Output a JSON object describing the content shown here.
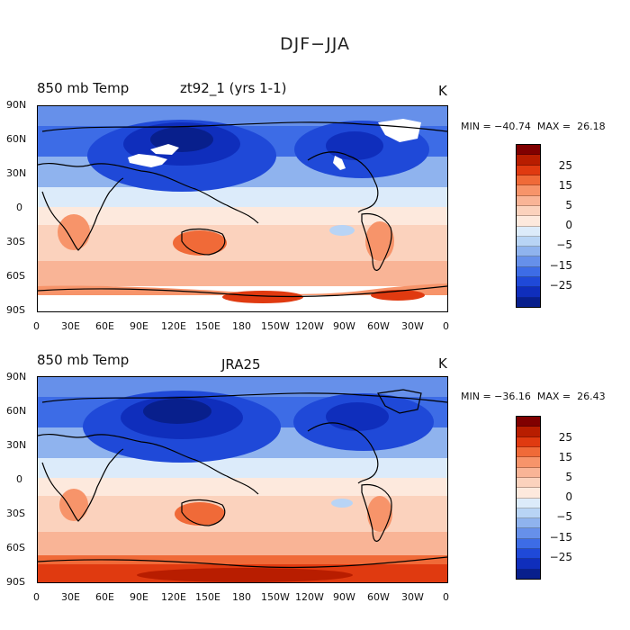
{
  "figure": {
    "title": "DJF−JJA"
  },
  "panels": [
    {
      "left_title": "850 mb Temp",
      "center_title": "zt92_1 (yrs 1-1)",
      "unit": "K",
      "minmax": "MIN = −40.74  MAX =  26.18",
      "min": -40.74,
      "max": 26.18,
      "has_missing_white_patches": true
    },
    {
      "left_title": "850 mb Temp",
      "center_title": "JRA25",
      "unit": "K",
      "minmax": "MIN = −36.16  MAX =  26.43",
      "min": -36.16,
      "max": 26.43,
      "has_missing_white_patches": false
    }
  ],
  "axes": {
    "lat_labels": [
      "90N",
      "60N",
      "30N",
      "0",
      "30S",
      "60S",
      "90S"
    ],
    "lon_labels": [
      "0",
      "30E",
      "60E",
      "90E",
      "120E",
      "150E",
      "180",
      "150W",
      "120W",
      "90W",
      "60W",
      "30W",
      "0"
    ]
  },
  "colorbar": {
    "labels": [
      "25",
      "15",
      "5",
      "0",
      "−5",
      "−15",
      "−25"
    ],
    "colors": [
      "#800000",
      "#b81d00",
      "#e03a10",
      "#f06a38",
      "#f7946a",
      "#f9b496",
      "#fbd2bd",
      "#fde9dd",
      "#dcebfa",
      "#b8d4f5",
      "#8fb3ee",
      "#6690ea",
      "#3d6ce6",
      "#1f49d8",
      "#0f2ebc",
      "#081f8c"
    ]
  },
  "chart_data": {
    "type": "heatmap",
    "title": "DJF−JJA",
    "units": "K",
    "contour_levels": [
      -30,
      -25,
      -20,
      -15,
      -10,
      -5,
      -2.5,
      0,
      2.5,
      5,
      10,
      15,
      20,
      25,
      30
    ],
    "panels": [
      {
        "name": "zt92_1 (yrs 1-1)",
        "variable": "850 mb Temp",
        "min": -40.74,
        "max": 26.18
      },
      {
        "name": "JRA25",
        "variable": "850 mb Temp",
        "min": -36.16,
        "max": 26.43
      }
    ],
    "x_ticks": [
      "0",
      "30E",
      "60E",
      "90E",
      "120E",
      "150E",
      "180",
      "150W",
      "120W",
      "90W",
      "60W",
      "30W",
      "0"
    ],
    "y_ticks": [
      "90N",
      "60N",
      "30N",
      "0",
      "30S",
      "60S",
      "90S"
    ],
    "xlim": [
      0,
      360
    ],
    "ylim": [
      -90,
      90
    ]
  }
}
